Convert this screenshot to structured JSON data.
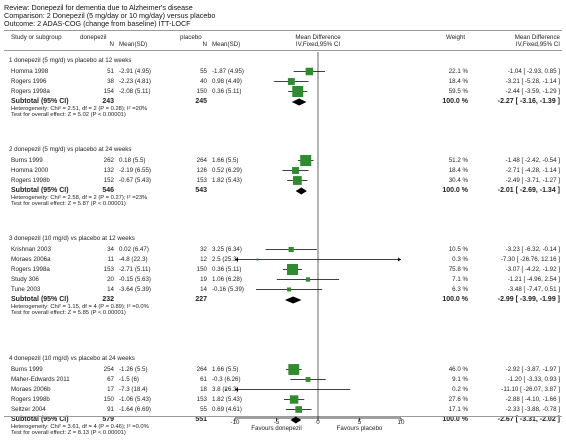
{
  "header": {
    "review": "Review:  Donepezil for dementia due to Alzheimer's disease",
    "comparison": "Comparison:  2 Donepezil (5 mg/day or 10 mg/day) versus placebo",
    "outcome": "Outcome:  2 ADAS-COG (change from baseline) ITT-LOCF"
  },
  "columns": {
    "study": "Study or subgroup",
    "donepezil": "donepezil",
    "donepezil_n": "N",
    "donepezil_mean": "Mean(SD)",
    "placebo": "placebo",
    "placebo_n": "N",
    "placebo_mean": "Mean(SD)",
    "md_top": "Mean Difference",
    "md_sub": "IV,Fixed,95% CI",
    "weight": "Weight",
    "md2_top": "Mean Difference",
    "md2_sub": "IV,Fixed,95% CI"
  },
  "chart_data": {
    "type": "forest",
    "axis": {
      "min": -10,
      "max": 10,
      "ticks": [
        "-10",
        "-5",
        "0",
        "5",
        "10"
      ]
    },
    "favours_left": "Favours donepezil",
    "favours_right": "Favours placebo",
    "subgroups": [
      {
        "title": "1 donepezil (5 mg/d) vs placebo at 12 weeks",
        "studies": [
          {
            "name": "Homma 1998",
            "n1": "51",
            "m1": "-2.91 (4.95)",
            "n2": "55",
            "m2": "-1.87 (4.95)",
            "weight": "22.1 %",
            "ci": "-1.04 [ -2.93, 0.85 ]",
            "md": -1.04,
            "lo": -2.93,
            "hi": 0.85
          },
          {
            "name": "Rogers 1996",
            "n1": "38",
            "m1": "-2.23 (4.81)",
            "n2": "40",
            "m2": "0.98 (4.49)",
            "weight": "18.4 %",
            "ci": "-3.21 [ -5.28, -1.14 ]",
            "md": -3.21,
            "lo": -5.28,
            "hi": -1.14
          },
          {
            "name": "Rogers 1998a",
            "n1": "154",
            "m1": "-2.08 (5.11)",
            "n2": "150",
            "m2": "0.36 (5.11)",
            "weight": "59.5 %",
            "ci": "-2.44 [ -3.59, -1.29 ]",
            "md": -2.44,
            "lo": -3.59,
            "hi": -1.29
          }
        ],
        "subtotal": {
          "label": "Subtotal (95% CI)",
          "n1": "243",
          "n2": "245",
          "weight": "100.0 %",
          "ci": "-2.27 [ -3.16, -1.39 ]",
          "md": -2.27,
          "lo": -3.16,
          "hi": -1.39
        },
        "heterogeneity": "Heterogeneity: Chi² = 2.51, df = 2 (P = 0.28); I² =20%",
        "overall": "Test for overall effect: Z = 5.02 (P < 0.00001)"
      },
      {
        "title": "2 donepezil (5 mg/d) vs placebo at 24 weeks",
        "studies": [
          {
            "name": "Burns 1999",
            "n1": "262",
            "m1": "0.18 (5.5)",
            "n2": "264",
            "m2": "1.66 (5.5)",
            "weight": "51.2 %",
            "ci": "-1.48 [ -2.42, -0.54 ]",
            "md": -1.48,
            "lo": -2.42,
            "hi": -0.54
          },
          {
            "name": "Homma 2000",
            "n1": "132",
            "m1": "-2.19 (6.55)",
            "n2": "126",
            "m2": "0.52 (6.29)",
            "weight": "18.4 %",
            "ci": "-2.71 [ -4.28, -1.14 ]",
            "md": -2.71,
            "lo": -4.28,
            "hi": -1.14
          },
          {
            "name": "Rogers 1998b",
            "n1": "152",
            "m1": "-0.67 (5.43)",
            "n2": "153",
            "m2": "1.82 (5.43)",
            "weight": "30.4 %",
            "ci": "-2.49 [ -3.71, -1.27 ]",
            "md": -2.49,
            "lo": -3.71,
            "hi": -1.27
          }
        ],
        "subtotal": {
          "label": "Subtotal (95% CI)",
          "n1": "546",
          "n2": "543",
          "weight": "100.0 %",
          "ci": "-2.01 [ -2.69, -1.34 ]",
          "md": -2.01,
          "lo": -2.69,
          "hi": -1.34
        },
        "heterogeneity": "Heterogeneity: Chi² = 2.58, df = 2 (P = 0.27); I² =23%",
        "overall": "Test for overall effect: Z = 5.87 (P < 0.00001)"
      },
      {
        "title": "3 donepezil (10 mg/d) vs placebo at 12 weeks",
        "studies": [
          {
            "name": "Krishnan 2003",
            "n1": "34",
            "m1": "0.02 (6.47)",
            "n2": "32",
            "m2": "3.25 (6.34)",
            "weight": "10.5 %",
            "ci": "-3.23 [ -6.32, -0.14 ]",
            "md": -3.23,
            "lo": -6.32,
            "hi": -0.14
          },
          {
            "name": "Moraes 2006a",
            "n1": "11",
            "m1": "-4.8 (22.3)",
            "n2": "12",
            "m2": "2.5 (25.3)",
            "weight": "0.3 %",
            "ci": "-7.30 [ -26.76, 12.16 ]",
            "md": -7.3,
            "lo": -26.76,
            "hi": 12.16
          },
          {
            "name": "Rogers 1998a",
            "n1": "153",
            "m1": "-2.71 (5.11)",
            "n2": "150",
            "m2": "0.36 (5.11)",
            "weight": "75.8 %",
            "ci": "-3.07 [ -4.22, -1.92 ]",
            "md": -3.07,
            "lo": -4.22,
            "hi": -1.92
          },
          {
            "name": "Study 306",
            "n1": "20",
            "m1": "-0.15 (5.63)",
            "n2": "19",
            "m2": "1.06 (6.28)",
            "weight": "7.1 %",
            "ci": "-1.21 [ -4.96, 2.54 ]",
            "md": -1.21,
            "lo": -4.96,
            "hi": 2.54
          },
          {
            "name": "Tune 2003",
            "n1": "14",
            "m1": "-3.64 (5.39)",
            "n2": "14",
            "m2": "-0.16 (5.39)",
            "weight": "6.3 %",
            "ci": "-3.48 [ -7.47, 0.51 ]",
            "md": -3.48,
            "lo": -7.47,
            "hi": 0.51
          }
        ],
        "subtotal": {
          "label": "Subtotal (95% CI)",
          "n1": "232",
          "n2": "227",
          "weight": "100.0 %",
          "ci": "-2.99 [ -3.99, -1.99 ]",
          "md": -2.99,
          "lo": -3.99,
          "hi": -1.99
        },
        "heterogeneity": "Heterogeneity: Chi² = 1.15, df = 4 (P = 0.89); I² =0.0%",
        "overall": "Test for overall effect: Z = 5.85 (P < 0.00001)"
      },
      {
        "title": "4 donepezil (10 mg/d) vs placebo at 24 weeks",
        "studies": [
          {
            "name": "Burns 1999",
            "n1": "254",
            "m1": "-1.26 (5.5)",
            "n2": "264",
            "m2": "1.66 (5.5)",
            "weight": "46.0 %",
            "ci": "-2.92 [ -3.87, -1.97 ]",
            "md": -2.92,
            "lo": -3.87,
            "hi": -1.97
          },
          {
            "name": "Maher-Edwards 2011",
            "n1": "67",
            "m1": "-1.5 (6)",
            "n2": "61",
            "m2": "-0.3 (6.26)",
            "weight": "9.1 %",
            "ci": "-1.20 [ -3.33, 0.93 ]",
            "md": -1.2,
            "lo": -3.33,
            "hi": 0.93
          },
          {
            "name": "Moraes 2006b",
            "n1": "17",
            "m1": "-7.3 (18.4)",
            "n2": "18",
            "m2": "3.8 (26.3)",
            "weight": "0.2 %",
            "ci": "-11.10 [ -26.07, 3.87 ]",
            "md": -11.1,
            "lo": -26.07,
            "hi": 3.87
          },
          {
            "name": "Rogers 1998b",
            "n1": "150",
            "m1": "-1.06 (5.43)",
            "n2": "153",
            "m2": "1.82 (5.43)",
            "weight": "27.6 %",
            "ci": "-2.88 [ -4.10, -1.66 ]",
            "md": -2.88,
            "lo": -4.1,
            "hi": -1.66
          },
          {
            "name": "Seltzer 2004",
            "n1": "91",
            "m1": "-1.64 (6.69)",
            "n2": "55",
            "m2": "0.69 (4.61)",
            "weight": "17.1 %",
            "ci": "-2.33 [ -3.88, -0.78 ]",
            "md": -2.33,
            "lo": -3.88,
            "hi": -0.78
          }
        ],
        "subtotal": {
          "label": "Subtotal (95% CI)",
          "n1": "579",
          "n2": "551",
          "weight": "100.0 %",
          "ci": "-2.67 [ -3.31, -2.02 ]",
          "md": -2.67,
          "lo": -3.31,
          "hi": -2.02
        },
        "heterogeneity": "Heterogeneity: Chi² = 3.61, df = 4 (P = 0.46); I² =0.0%",
        "overall": "Test for overall effect: Z = 8.13 (P < 0.00001)"
      }
    ]
  }
}
